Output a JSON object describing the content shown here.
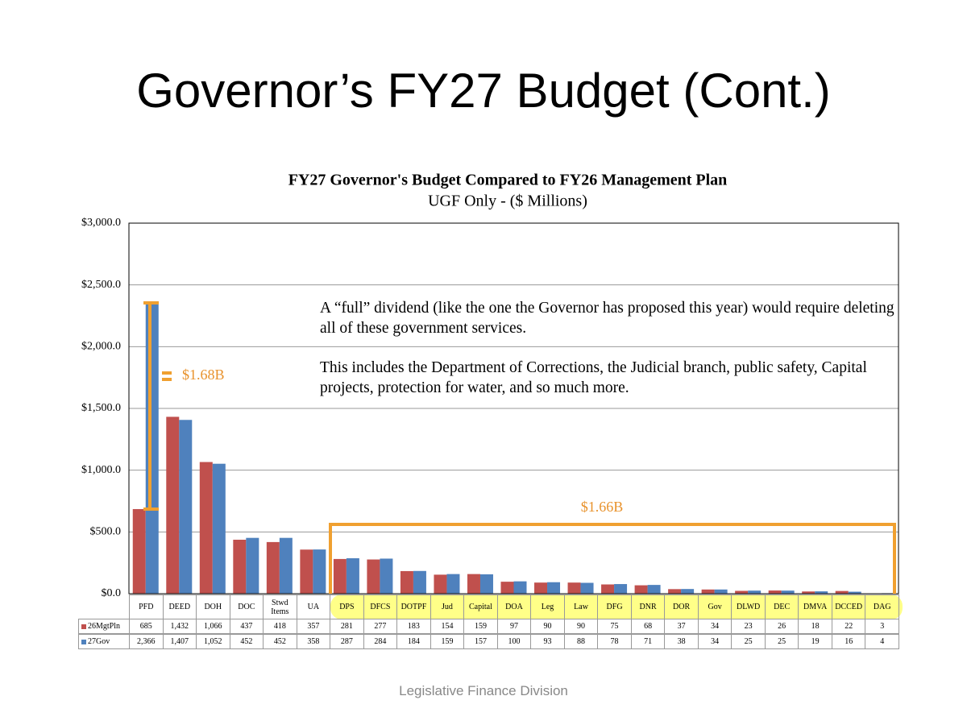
{
  "slide": {
    "title": "Governor’s FY27 Budget (Cont.)",
    "footer": "Legislative Finance Division"
  },
  "chart_data": {
    "type": "bar",
    "title": "FY27 Governor's Budget Compared to FY26 Management Plan",
    "subtitle": "UGF Only - ($ Millions)",
    "categories": [
      "PFD",
      "DEED",
      "DOH",
      "DOC",
      "Stwd Items",
      "UA",
      "DPS",
      "DFCS",
      "DOTPF",
      "Jud",
      "Capital",
      "DOA",
      "Leg",
      "Law",
      "DFG",
      "DNR",
      "DOR",
      "Gov",
      "DLWD",
      "DEC",
      "DMVA",
      "DCCED",
      "DAG"
    ],
    "series": [
      {
        "name": "26MgtPln",
        "color": "#c0504d",
        "values": [
          685,
          1432,
          1066,
          437,
          418,
          357,
          281,
          277,
          183,
          154,
          159,
          97,
          90,
          90,
          75,
          68,
          37,
          34,
          23,
          26,
          18,
          22,
          3
        ],
        "value_labels": [
          "685",
          "1,432",
          "1,066",
          "437",
          "418",
          "357",
          "281",
          "277",
          "183",
          "154",
          "159",
          "97",
          "90",
          "90",
          "75",
          "68",
          "37",
          "34",
          "23",
          "26",
          "18",
          "22",
          "3"
        ]
      },
      {
        "name": "27Gov",
        "color": "#4f81bd",
        "values": [
          2366,
          1407,
          1052,
          452,
          452,
          358,
          287,
          284,
          184,
          159,
          157,
          100,
          93,
          88,
          78,
          71,
          38,
          34,
          25,
          25,
          19,
          16,
          4
        ],
        "value_labels": [
          "2,366",
          "1,407",
          "1,052",
          "452",
          "452",
          "358",
          "287",
          "284",
          "184",
          "159",
          "157",
          "100",
          "93",
          "88",
          "78",
          "71",
          "38",
          "34",
          "25",
          "25",
          "19",
          "16",
          "4"
        ]
      }
    ],
    "ylim": [
      0,
      3000
    ],
    "yticks": [
      {
        "value": 0,
        "label": "$0.0"
      },
      {
        "value": 500,
        "label": "$500.0"
      },
      {
        "value": 1000,
        "label": "$1,000.0"
      },
      {
        "value": 1500,
        "label": "$1,500.0"
      },
      {
        "value": 2000,
        "label": "$2,000.0"
      },
      {
        "value": 2500,
        "label": "$2,500.0"
      },
      {
        "value": 3000,
        "label": "$3,000.0"
      }
    ],
    "grid": true,
    "annotations": [
      "$1.68B",
      "$1.66B",
      "A “full” dividend (like the one the Governor has proposed this year) would require deleting all of these government services.",
      "This includes the Department of Corrections, the Judicial branch, public safety, Capital projects, protection for water, and so much more."
    ]
  }
}
